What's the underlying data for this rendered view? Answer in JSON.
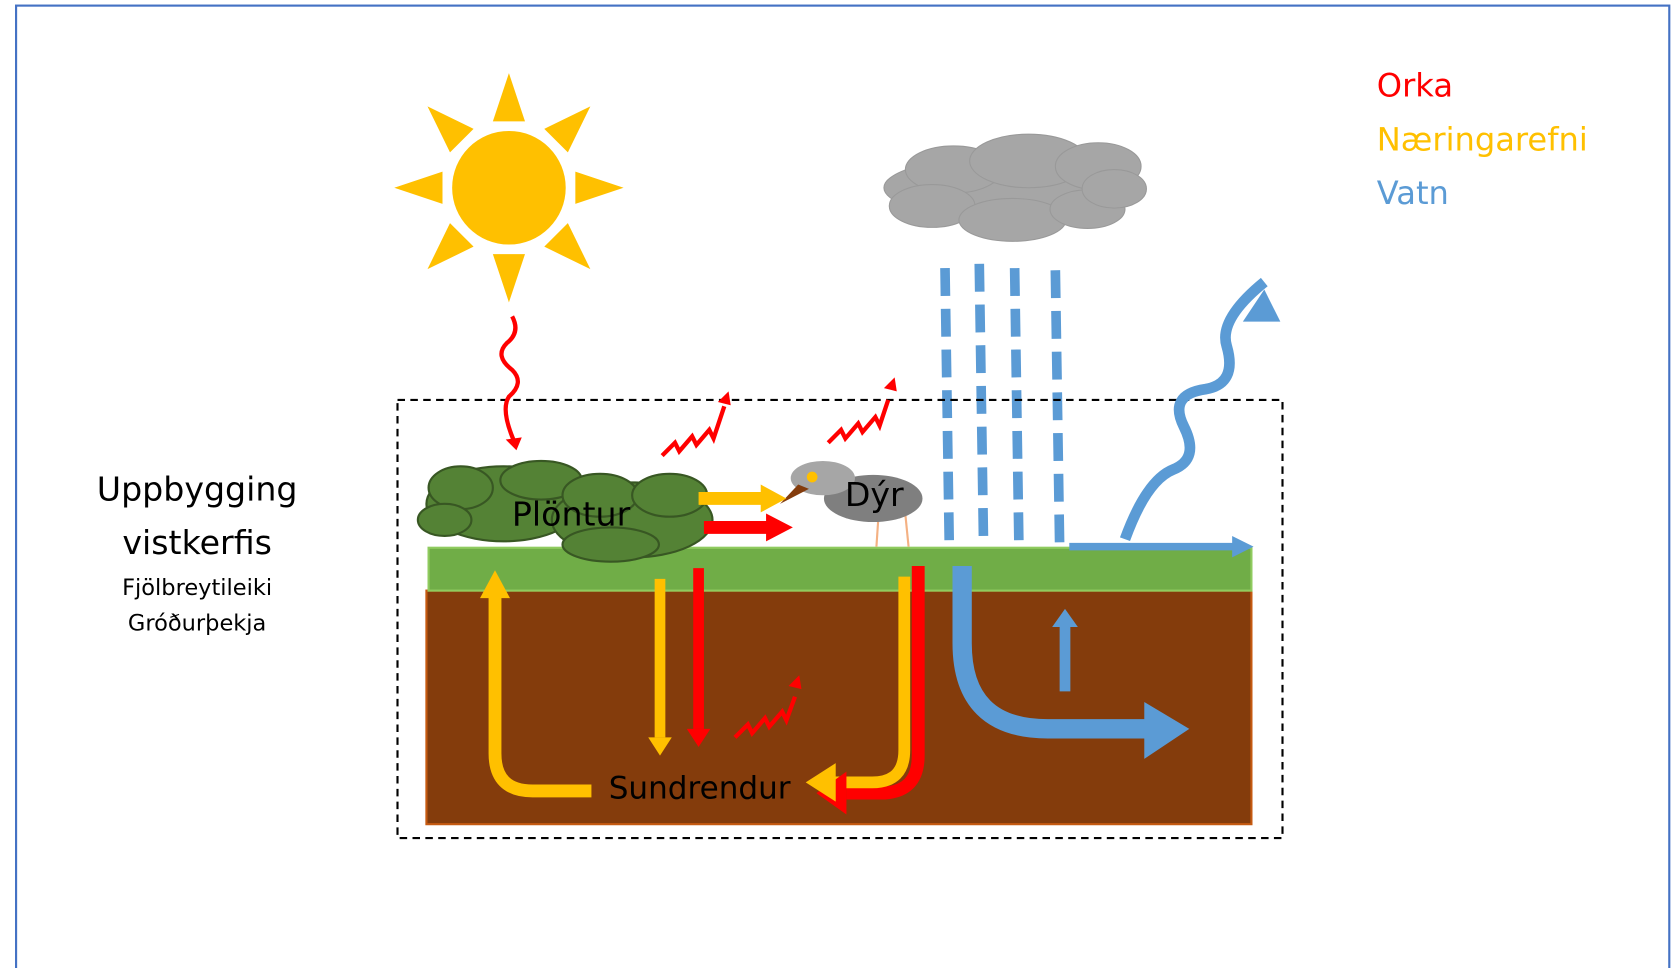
{
  "legend": [
    {
      "label": "Orka",
      "color": "#ff0000"
    },
    {
      "label": "Næringarefni",
      "color": "#ffc000"
    },
    {
      "label": "Vatn",
      "color": "#5b9bd5"
    }
  ],
  "side_panel": {
    "title_lines": [
      "Uppbygging",
      "vistkerfis"
    ],
    "items": [
      "Fjölbreytileiki",
      "Gróðurþekja"
    ]
  },
  "nodes": [
    {
      "label": "Plöntur"
    },
    {
      "label": "Dýr"
    },
    {
      "label": "Sundrendur"
    }
  ]
}
